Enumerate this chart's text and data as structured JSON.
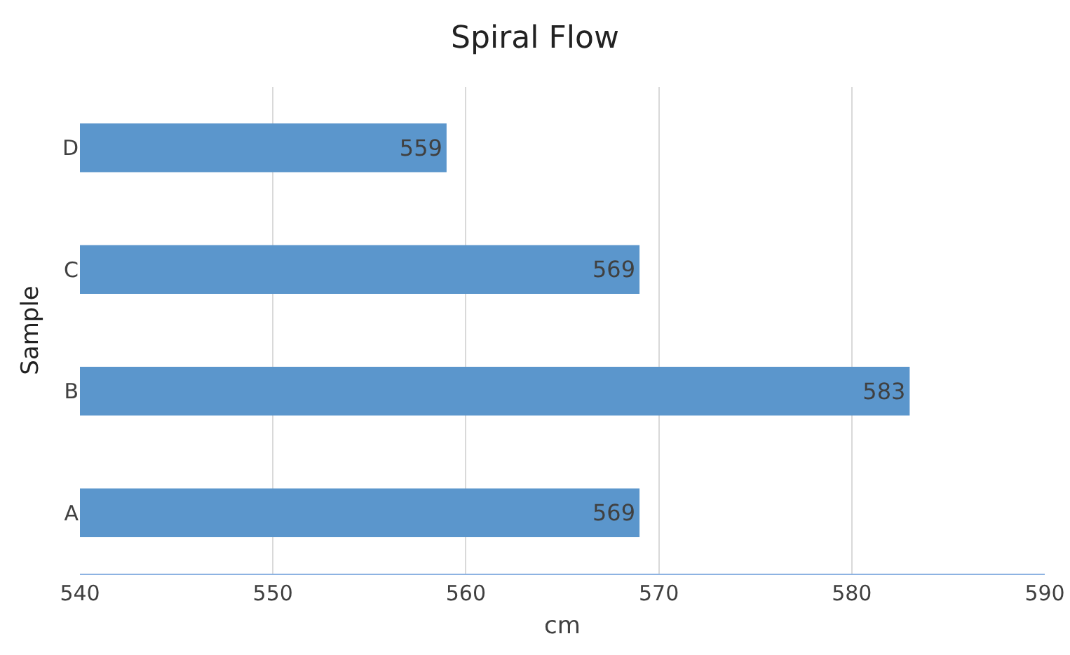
{
  "chart_data": {
    "type": "bar",
    "orientation": "horizontal",
    "title": "Spiral Flow",
    "xlabel": "cm",
    "ylabel": "Sample",
    "categories": [
      "D",
      "C",
      "B",
      "A"
    ],
    "values": [
      559,
      569,
      583,
      569
    ],
    "color": "#5b96cc",
    "xlim": [
      540,
      590
    ],
    "xticks": [
      540,
      550,
      560,
      570,
      580,
      590
    ],
    "grid": "x",
    "data_labels": true
  }
}
